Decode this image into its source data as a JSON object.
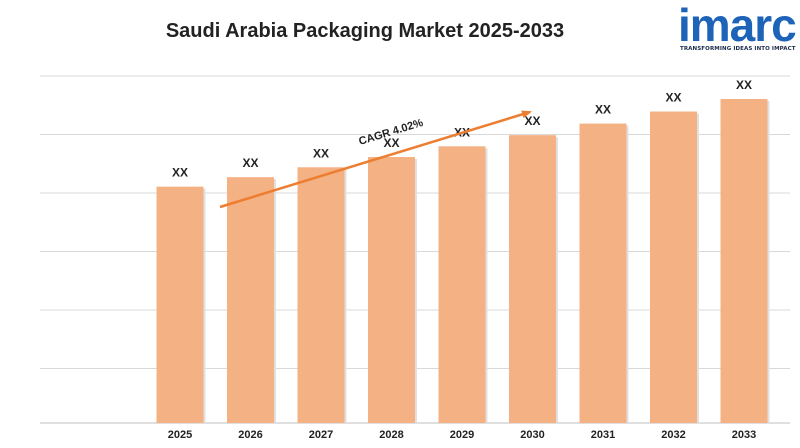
{
  "title": "Saudi Arabia Packaging Market 2025-2033",
  "logo": {
    "word": "imarc",
    "tagline": "TRANSFORMING IDEAS INTO IMPACT"
  },
  "colors": {
    "bar": "#f4b183",
    "arrow": "#ed7d31",
    "grid": "#d9d9d9",
    "brand": "#1d63b8"
  },
  "chart_data": {
    "type": "bar",
    "title": "Saudi Arabia Packaging Market 2025-2033",
    "categories": [
      "2025",
      "2026",
      "2027",
      "2028",
      "2029",
      "2030",
      "2031",
      "2032",
      "2033"
    ],
    "values": [
      100,
      104.02,
      108.2,
      112.55,
      117.08,
      121.79,
      126.69,
      131.79,
      137.09
    ],
    "data_labels": [
      "XX",
      "XX",
      "XX",
      "XX",
      "XX",
      "XX",
      "XX",
      "XX",
      "XX"
    ],
    "annotation": "CAGR 4.02%",
    "grid": true,
    "legend": "none"
  }
}
